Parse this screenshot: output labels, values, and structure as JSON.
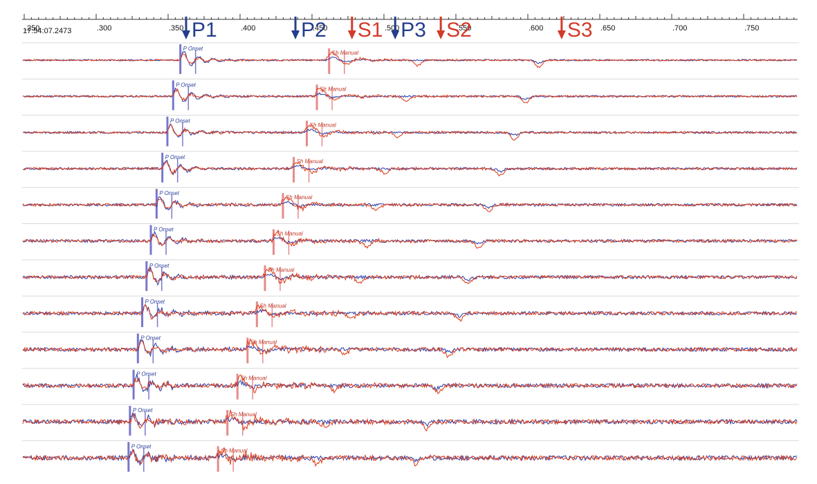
{
  "timestamp": "17:54:07.2473",
  "tick_labels": [
    ".250",
    ".300",
    ".350",
    ".400",
    ".450",
    ".500",
    ".550",
    ".600",
    ".650",
    ".700",
    ".750"
  ],
  "phases": [
    {
      "name": "P1",
      "time": 0.3625,
      "color": "#243d8c"
    },
    {
      "name": "P2",
      "time": 0.4385,
      "color": "#243d8c"
    },
    {
      "name": "S1",
      "time": 0.4778,
      "color": "#d23a2a"
    },
    {
      "name": "P3",
      "time": 0.5078,
      "color": "#243d8c"
    },
    {
      "name": "S2",
      "time": 0.5395,
      "color": "#d23a2a"
    },
    {
      "name": "S3",
      "time": 0.6235,
      "color": "#d23a2a"
    }
  ],
  "pick_labels": {
    "p": "P Onset",
    "s": "Sh Manual"
  },
  "colors": {
    "trace_blue": "#3344aa",
    "trace_red": "#dd4422",
    "p_marker": "#7777cc",
    "s_marker": "#e68a8a",
    "grid": "#d8d8d8"
  },
  "traces": [
    {
      "p_time": 0.3585,
      "s_time": 0.4619
    },
    {
      "p_time": 0.3535,
      "s_time": 0.4534
    },
    {
      "p_time": 0.3495,
      "s_time": 0.4464
    },
    {
      "p_time": 0.346,
      "s_time": 0.4373
    },
    {
      "p_time": 0.342,
      "s_time": 0.4298
    },
    {
      "p_time": 0.338,
      "s_time": 0.4233
    },
    {
      "p_time": 0.335,
      "s_time": 0.4173
    },
    {
      "p_time": 0.332,
      "s_time": 0.4117
    },
    {
      "p_time": 0.329,
      "s_time": 0.4052
    },
    {
      "p_time": 0.326,
      "s_time": 0.3982
    },
    {
      "p_time": 0.3235,
      "s_time": 0.3912
    },
    {
      "p_time": 0.3225,
      "s_time": 0.3847
    }
  ]
}
